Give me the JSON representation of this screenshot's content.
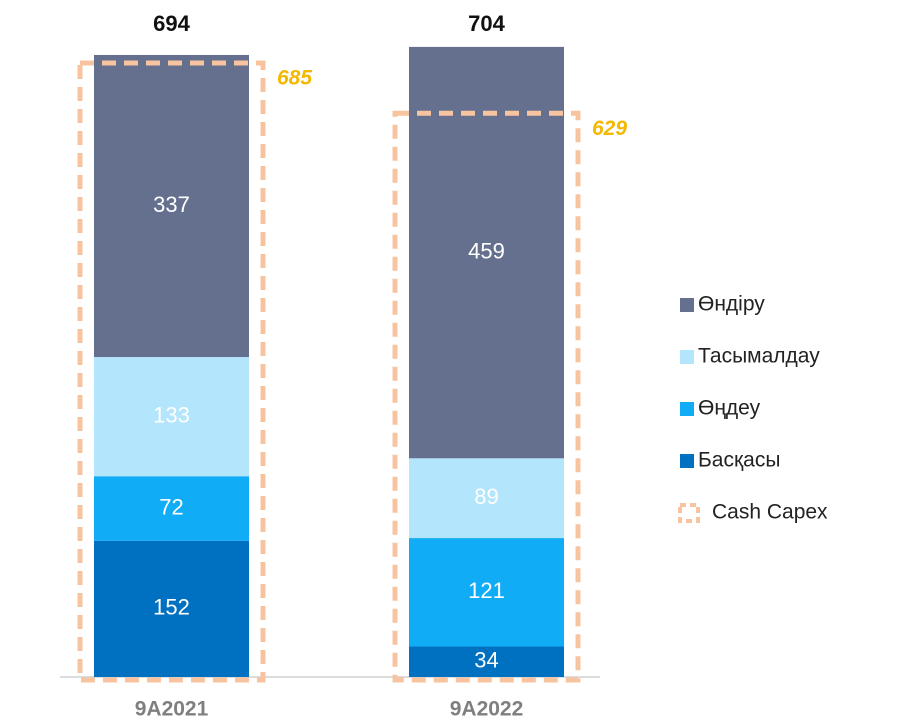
{
  "chart_data": {
    "type": "stacked-bar",
    "categories": [
      "9A2021",
      "9A2022"
    ],
    "series": [
      {
        "name": "Басқасы",
        "color": "#0070c0",
        "values": [
          152,
          34
        ]
      },
      {
        "name": "Өңдеу",
        "color": "#10acf5",
        "values": [
          72,
          121
        ]
      },
      {
        "name": "Тасымалдау",
        "color": "#b3e5fc",
        "values": [
          133,
          89
        ]
      },
      {
        "name": "Өндіру",
        "color": "#64708e",
        "values": [
          337,
          459
        ]
      }
    ],
    "totals": [
      694,
      704
    ],
    "cash_capex": {
      "name": "Cash Capex",
      "color": "#f8c4a0",
      "label_color": "#f5b800",
      "values": [
        685,
        629
      ]
    },
    "legend": "right"
  }
}
